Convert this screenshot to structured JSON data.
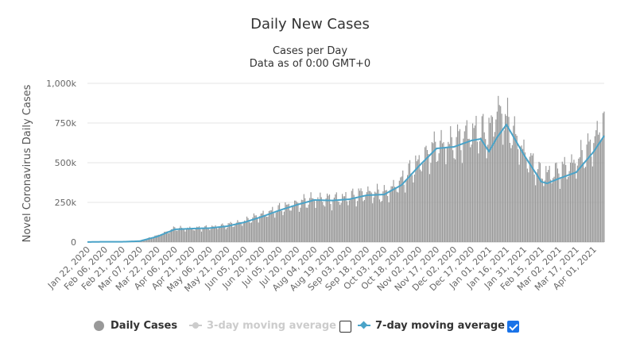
{
  "chart_data": {
    "type": "bar",
    "title": "Daily New Cases",
    "subtitle_line1": "Cases per Day",
    "subtitle_line2": "Data as of 0:00 GMT+0",
    "ylabel": "Novel Coronavirus Daily Cases",
    "ylim": [
      0,
      1000000
    ],
    "y_ticks": [
      "0",
      "250k",
      "500k",
      "750k",
      "1,000k"
    ],
    "y_tick_values": [
      0,
      250000,
      500000,
      750000,
      1000000
    ],
    "x_tick_labels": [
      "Jan 22, 2020",
      "Feb 06, 2020",
      "Feb 21, 2020",
      "Mar 07, 2020",
      "Mar 22, 2020",
      "Apr 06, 2020",
      "Apr 21, 2020",
      "May 06, 2020",
      "May 21, 2020",
      "Jun 05, 2020",
      "Jun 20, 2020",
      "Jul 05, 2020",
      "Jul 20, 2020",
      "Aug 04, 2020",
      "Aug 19, 2020",
      "Sep 03, 2020",
      "Sep 18, 2020",
      "Oct 03, 2020",
      "Oct 18, 2020",
      "Nov 02, 2020",
      "Nov 17, 2020",
      "Dec 02, 2020",
      "Dec 17, 2020",
      "Jan 01, 2021",
      "Jan 16, 2021",
      "Jan 31, 2021",
      "Feb 15, 2021",
      "Mar 02, 2021",
      "Mar 17, 2021",
      "Apr 01, 2021"
    ],
    "x_start": "2020-01-22",
    "x_end": "2021-04-10",
    "grid": true,
    "series": [
      {
        "name": "Daily Cases",
        "type": "bar",
        "color": "#999999",
        "x": [
          "2020-01-22",
          "2020-02-06",
          "2020-02-21",
          "2020-03-07",
          "2020-03-22",
          "2020-04-06",
          "2020-04-21",
          "2020-05-06",
          "2020-05-21",
          "2020-06-05",
          "2020-06-20",
          "2020-07-05",
          "2020-07-20",
          "2020-08-04",
          "2020-08-19",
          "2020-09-03",
          "2020-09-18",
          "2020-10-03",
          "2020-10-18",
          "2020-11-02",
          "2020-11-17",
          "2020-12-02",
          "2020-12-17",
          "2021-01-01",
          "2021-01-08",
          "2021-01-16",
          "2021-01-31",
          "2021-02-15",
          "2021-03-02",
          "2021-03-17",
          "2021-04-01",
          "2021-04-10"
        ],
        "y": [
          600,
          3000,
          2000,
          8000,
          40000,
          85000,
          85000,
          90000,
          105000,
          130000,
          170000,
          205000,
          240000,
          270000,
          265000,
          280000,
          310000,
          300000,
          380000,
          500000,
          600000,
          620000,
          690000,
          680000,
          830000,
          760000,
          560000,
          420000,
          440000,
          500000,
          620000,
          780000
        ]
      },
      {
        "name": "3-day moving average",
        "type": "line",
        "color": "#cccccc",
        "visible": false
      },
      {
        "name": "7-day moving average",
        "type": "line",
        "color": "#4aa3c8",
        "x": [
          "2020-01-22",
          "2020-02-06",
          "2020-02-21",
          "2020-03-07",
          "2020-03-22",
          "2020-04-06",
          "2020-04-21",
          "2020-05-06",
          "2020-05-21",
          "2020-06-05",
          "2020-06-20",
          "2020-07-05",
          "2020-07-20",
          "2020-08-04",
          "2020-08-19",
          "2020-09-03",
          "2020-09-18",
          "2020-10-03",
          "2020-10-18",
          "2020-11-02",
          "2020-11-17",
          "2020-12-02",
          "2020-12-17",
          "2020-12-25",
          "2021-01-01",
          "2021-01-08",
          "2021-01-16",
          "2021-01-31",
          "2021-02-15",
          "2021-02-20",
          "2021-03-02",
          "2021-03-17",
          "2021-04-01",
          "2021-04-10"
        ],
        "y": [
          600,
          2000,
          2000,
          6000,
          35000,
          80000,
          85000,
          88000,
          100000,
          125000,
          160000,
          200000,
          235000,
          265000,
          262000,
          270000,
          295000,
          300000,
          360000,
          480000,
          590000,
          600000,
          640000,
          650000,
          570000,
          660000,
          740000,
          550000,
          380000,
          370000,
          400000,
          440000,
          570000,
          670000
        ]
      }
    ],
    "legend": {
      "position": "bottom",
      "items": [
        {
          "label": "Daily Cases",
          "color": "#999999"
        },
        {
          "label": "3-day moving average",
          "color": "#cccccc",
          "enabled": false
        },
        {
          "label": "7-day moving average",
          "color": "#4aa3c8",
          "enabled": true
        }
      ]
    }
  }
}
